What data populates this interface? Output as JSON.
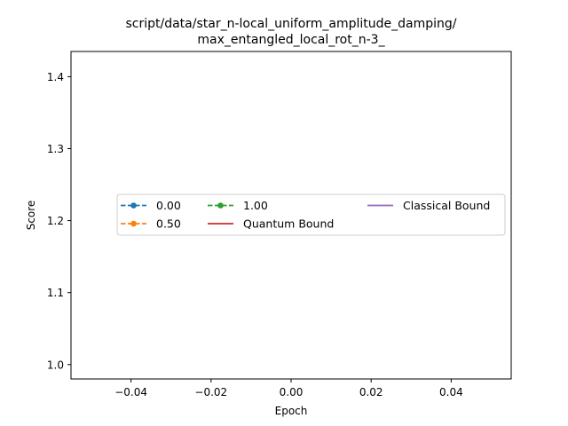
{
  "chart_data": {
    "type": "line",
    "title_lines": [
      "script/data/star_n-local_uniform_amplitude_damping/",
      "max_entangled_local_rot_n-3_"
    ],
    "xlabel": "Epoch",
    "ylabel": "Score",
    "xlim": [
      -0.055,
      0.055
    ],
    "ylim": [
      0.98,
      1.435
    ],
    "xticks": [
      -0.04,
      -0.02,
      0.0,
      0.02,
      0.04
    ],
    "xtick_labels": [
      "−0.04",
      "−0.02",
      "0.00",
      "0.02",
      "0.04"
    ],
    "yticks": [
      1.0,
      1.1,
      1.2,
      1.3,
      1.4
    ],
    "ytick_labels": [
      "1.0",
      "1.1",
      "1.2",
      "1.3",
      "1.4"
    ],
    "grid": false,
    "legend_placement": "center",
    "series": [
      {
        "name": "0.00",
        "color": "#1f77b4",
        "style": "dashed-marker",
        "x": [],
        "y": []
      },
      {
        "name": "0.50",
        "color": "#ff7f0e",
        "style": "dashed-marker",
        "x": [],
        "y": []
      },
      {
        "name": "1.00",
        "color": "#2ca02c",
        "style": "dashed-marker",
        "x": [],
        "y": []
      },
      {
        "name": "Quantum Bound",
        "color": "#d62728",
        "style": "solid",
        "x": [],
        "y": []
      },
      {
        "name": "Classical Bound",
        "color": "#9467bd",
        "style": "solid",
        "x": [],
        "y": []
      }
    ]
  }
}
